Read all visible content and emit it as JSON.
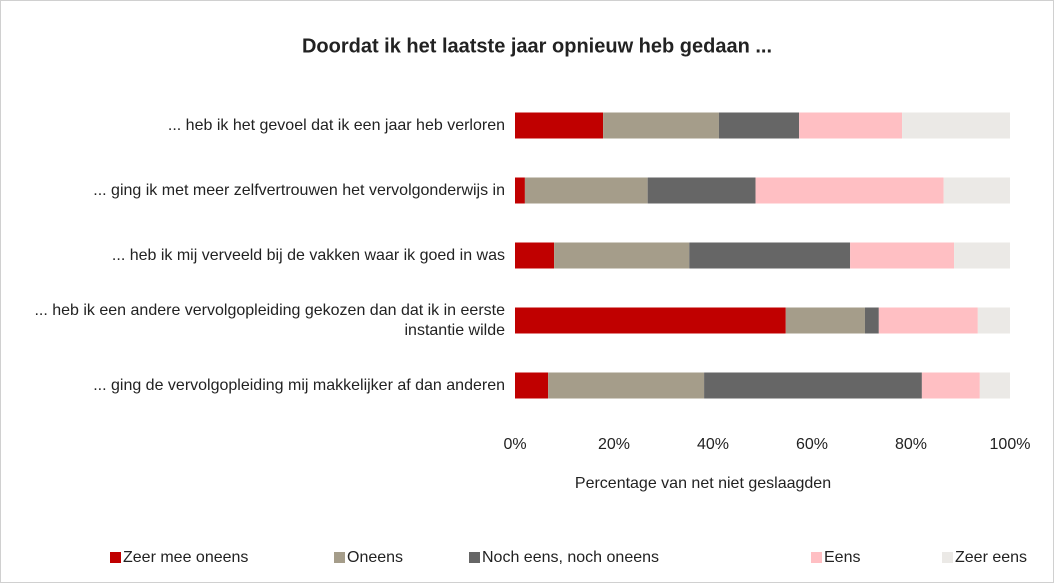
{
  "chart_data": {
    "type": "stacked-barh",
    "title": "Doordat ik het laatste jaar opnieuw heb gedaan ...",
    "xlabel": "Percentage van net niet geslaagden",
    "categories": [
      "... heb ik het gevoel dat ik een jaar heb verloren",
      "... ging ik met meer zelfvertrouwen het vervolgonderwijs in",
      "... heb ik mij verveeld bij de vakken waar ik goed in was",
      "... heb ik een andere vervolgopleiding gekozen dan dat ik in eerste instantie wilde",
      "... ging de vervolgopleiding mij makkelijker af dan anderen"
    ],
    "series": [
      {
        "name": "Zeer mee oneens",
        "color": "#c00000",
        "values": [
          17.8,
          2.0,
          7.9,
          54.7,
          6.7
        ]
      },
      {
        "name": "Oneens",
        "color": "#a59d8a",
        "values": [
          23.4,
          24.8,
          27.3,
          16.0,
          31.5
        ]
      },
      {
        "name": "Noch eens, noch oneens",
        "color": "#666666",
        "values": [
          16.2,
          21.8,
          32.5,
          2.8,
          44.0
        ]
      },
      {
        "name": "Eens",
        "color": "#ffbfc3",
        "values": [
          20.8,
          38.0,
          21.0,
          20.0,
          11.7
        ]
      },
      {
        "name": "Zeer eens",
        "color": "#ebe9e6",
        "values": [
          21.8,
          13.4,
          11.3,
          6.5,
          6.1
        ]
      }
    ],
    "xlim": [
      0,
      100
    ],
    "xticks": [
      {
        "value": 0,
        "label": "0%"
      },
      {
        "value": 20,
        "label": "20%"
      },
      {
        "value": 40,
        "label": "40%"
      },
      {
        "value": 60,
        "label": "60%"
      },
      {
        "value": 80,
        "label": "80%"
      },
      {
        "value": 100,
        "label": "100%"
      }
    ],
    "grid": false,
    "legend": "bottom"
  }
}
